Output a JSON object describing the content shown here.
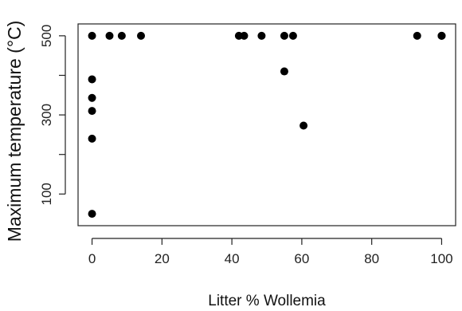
{
  "chart_data": {
    "type": "scatter",
    "title": "",
    "xlabel": "Litter % Wollemia",
    "ylabel": "Maximum temperature (°C)",
    "xlim": [
      -4,
      104
    ],
    "ylim": [
      20,
      530
    ],
    "xticks": [
      0,
      20,
      40,
      60,
      80,
      100
    ],
    "yticks": [
      100,
      300,
      500
    ],
    "grid": false,
    "legend": "none",
    "point_color": "#000000",
    "series": [
      {
        "points": [
          {
            "x": 0,
            "y": 500
          },
          {
            "x": 0,
            "y": 390
          },
          {
            "x": 0,
            "y": 343
          },
          {
            "x": 0,
            "y": 310
          },
          {
            "x": 0,
            "y": 240
          },
          {
            "x": 0,
            "y": 50
          },
          {
            "x": 5,
            "y": 500
          },
          {
            "x": 8.5,
            "y": 500
          },
          {
            "x": 14,
            "y": 500
          },
          {
            "x": 42,
            "y": 500
          },
          {
            "x": 43.5,
            "y": 500
          },
          {
            "x": 48.5,
            "y": 500
          },
          {
            "x": 55,
            "y": 500
          },
          {
            "x": 57.5,
            "y": 500
          },
          {
            "x": 55,
            "y": 410
          },
          {
            "x": 60.5,
            "y": 273
          },
          {
            "x": 93,
            "y": 500
          },
          {
            "x": 100,
            "y": 500
          },
          {
            "x": 100,
            "y": 500
          }
        ]
      }
    ]
  }
}
